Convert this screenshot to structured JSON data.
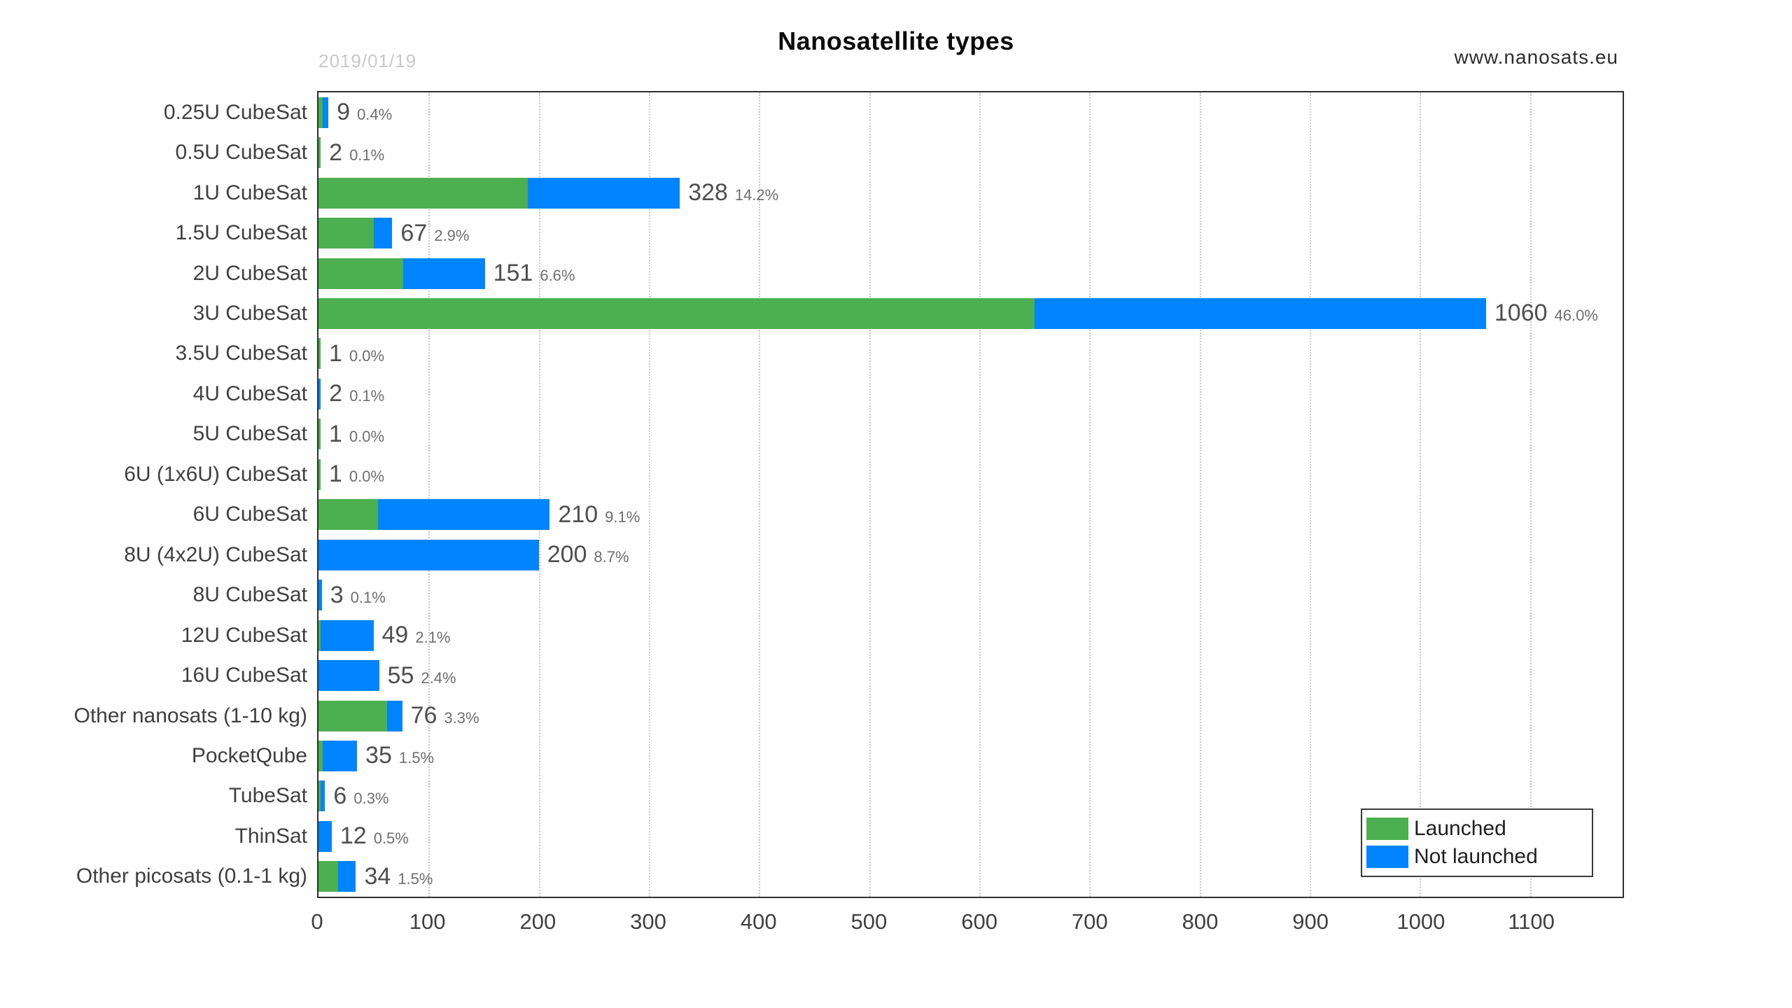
{
  "page": {
    "date_label": "2019/01/19",
    "title": "Nanosatellite types",
    "website": "www.nanosats.eu"
  },
  "colors": {
    "launched": "#4CAF50",
    "not_launched": "#0084FF",
    "grid": "#c8c8c8",
    "plot_border": "#2f2f2f"
  },
  "chart_data": {
    "type": "bar",
    "orientation": "horizontal",
    "stacked": true,
    "title": "Nanosatellite types",
    "xlabel": "",
    "ylabel": "",
    "xlim": [
      0,
      1184
    ],
    "x_ticks": [
      0,
      100,
      200,
      300,
      400,
      500,
      600,
      700,
      800,
      900,
      1000,
      1100
    ],
    "grid": "vertical-dotted",
    "legend_position": "bottom-right",
    "categories": [
      "0.25U CubeSat",
      "0.5U CubeSat",
      "1U CubeSat",
      "1.5U CubeSat",
      "2U CubeSat",
      "3U CubeSat",
      "3.5U CubeSat",
      "4U CubeSat",
      "5U CubeSat",
      "6U (1x6U) CubeSat",
      "6U CubeSat",
      "8U (4x2U) CubeSat",
      "8U CubeSat",
      "12U CubeSat",
      "16U CubeSat",
      "Other nanosats (1-10 kg)",
      "PocketQube",
      "TubeSat",
      "ThinSat",
      "Other picosats (0.1-1 kg)"
    ],
    "series": [
      {
        "name": "Launched",
        "color": "#4CAF50",
        "values": [
          4,
          2,
          190,
          50,
          77,
          650,
          1,
          0,
          1,
          1,
          54,
          0,
          0,
          1,
          0,
          62,
          4,
          2,
          0,
          18
        ]
      },
      {
        "name": "Not launched",
        "color": "#0084FF",
        "values": [
          5,
          0,
          138,
          17,
          74,
          410,
          0,
          2,
          0,
          0,
          156,
          200,
          3,
          48,
          55,
          14,
          31,
          4,
          12,
          16
        ]
      }
    ],
    "totals": [
      9,
      2,
      328,
      67,
      151,
      1060,
      1,
      2,
      1,
      1,
      210,
      200,
      3,
      49,
      55,
      76,
      35,
      6,
      12,
      34
    ],
    "total_labels": [
      "9",
      "2",
      "328",
      "67",
      "151",
      "1060",
      "1",
      "2",
      "1",
      "1",
      "210",
      "200",
      "3",
      "49",
      "55",
      "76",
      "35",
      "6",
      "12",
      "34"
    ],
    "pct_labels": [
      "0.4%",
      "0.1%",
      "14.2%",
      "2.9%",
      "6.6%",
      "46.0%",
      "0.0%",
      "0.1%",
      "0.0%",
      "0.0%",
      "9.1%",
      "8.7%",
      "0.1%",
      "2.1%",
      "2.4%",
      "3.3%",
      "1.5%",
      "0.3%",
      "0.5%",
      "1.5%"
    ],
    "legend_entries": [
      {
        "label": "Launched",
        "color": "#4CAF50"
      },
      {
        "label": "Not launched",
        "color": "#0084FF"
      }
    ]
  }
}
